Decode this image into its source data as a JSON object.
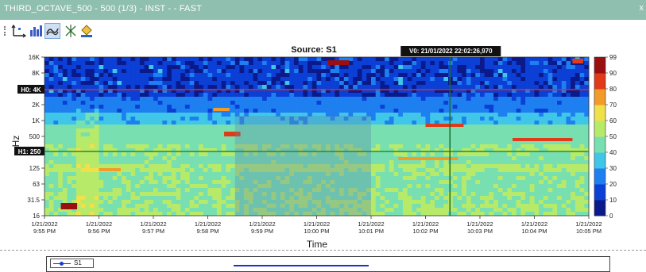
{
  "window": {
    "title": "THIRD_OCTAVE_500 - 500 (1/3) - INST -  - FAST",
    "close_glyph": "x"
  },
  "toolbar": {
    "buttons": [
      {
        "icon": "axis-scale-icon"
      },
      {
        "icon": "bar-chart-icon"
      },
      {
        "icon": "line-link-icon",
        "active": true
      },
      {
        "icon": "cursor-crosshair-icon"
      },
      {
        "icon": "paint-bucket-icon"
      }
    ]
  },
  "chart_data": {
    "type": "heatmap",
    "title": "Source: S1",
    "xlabel": "Time",
    "ylabel": "Hz",
    "x_ticks": [
      [
        "1/21/2022",
        "9:55 PM"
      ],
      [
        "1/21/2022",
        "9:56 PM"
      ],
      [
        "1/21/2022",
        "9:57 PM"
      ],
      [
        "1/21/2022",
        "9:58 PM"
      ],
      [
        "1/21/2022",
        "9:59 PM"
      ],
      [
        "1/21/2022",
        "10:00 PM"
      ],
      [
        "1/21/2022",
        "10:01 PM"
      ],
      [
        "1/21/2022",
        "10:02 PM"
      ],
      [
        "1/21/2022",
        "10:03 PM"
      ],
      [
        "1/21/2022",
        "10:04 PM"
      ],
      [
        "1/21/2022",
        "10:05 PM"
      ]
    ],
    "y_ticks": [
      "16K",
      "8K",
      "4K",
      "2K",
      "1K",
      "500",
      "250",
      "125",
      "63",
      "31.5",
      "16"
    ],
    "colorbar_ticks": [
      99,
      90,
      80,
      70,
      60,
      50,
      40,
      30,
      20,
      10,
      0
    ],
    "colorbar_range": [
      0,
      99
    ],
    "cursor_v_label": "V0: 21/01/2022 22:02:26,970",
    "cursor_h0_label": "H0: 4K",
    "cursor_h1_label": "H1: 250",
    "highlighted_interval": [
      "9:58 PM",
      "10:01 PM"
    ],
    "palette": [
      "#0a1a8a",
      "#0b3fd6",
      "#1e7ff0",
      "#3fc6e8",
      "#78e0b0",
      "#b8ea6a",
      "#f0e04a",
      "#f29a2a",
      "#e03a18",
      "#9a1010"
    ],
    "series": [
      {
        "name": "S1"
      }
    ]
  },
  "legend": {
    "items": [
      {
        "label": "S1",
        "color": "#1a3ccc"
      }
    ]
  }
}
